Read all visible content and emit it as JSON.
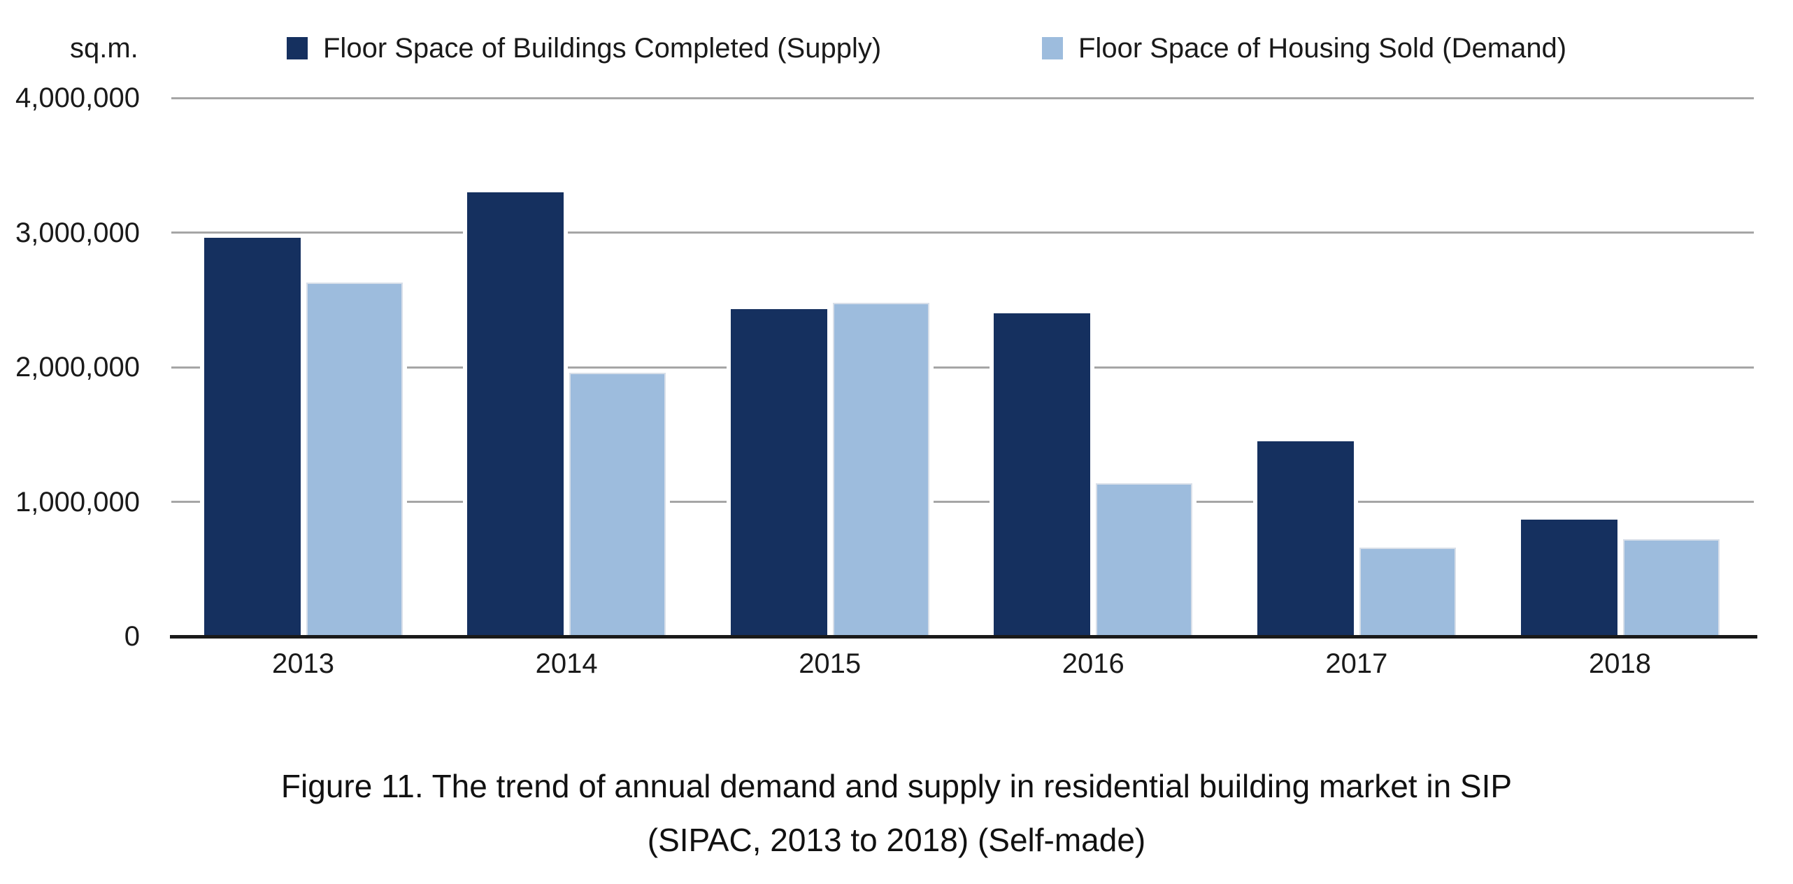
{
  "header": {
    "unit_label": "sq.m."
  },
  "chart_data": {
    "type": "bar",
    "title": "",
    "xlabel": "",
    "ylabel": "sq.m.",
    "categories": [
      "2013",
      "2014",
      "2015",
      "2016",
      "2017",
      "2018"
    ],
    "series": [
      {
        "key": "supply",
        "name": "Floor Space of Buildings Completed (Supply)",
        "color": "#15305F",
        "values": [
          2960000,
          3300000,
          2430000,
          2400000,
          1450000,
          870000
        ]
      },
      {
        "key": "demand",
        "name": "Floor Space of Housing Sold (Demand)",
        "color": "#9DBCDD",
        "values": [
          2630000,
          1960000,
          2480000,
          1140000,
          660000,
          720000
        ]
      }
    ],
    "ylim": [
      0,
      4000000
    ],
    "yticks": [
      {
        "value": 0,
        "label": "0"
      },
      {
        "value": 1000000,
        "label": "1,000,000"
      },
      {
        "value": 2000000,
        "label": "2,000,000"
      },
      {
        "value": 3000000,
        "label": "3,000,000"
      },
      {
        "value": 4000000,
        "label": "4,000,000"
      }
    ],
    "grid": "horizontal",
    "legend_position": "top"
  },
  "caption": {
    "line1": "Figure 11. The trend of annual demand and supply in residential building market in SIP",
    "line2": "(SIPAC, 2013 to 2018) (Self-made)"
  }
}
